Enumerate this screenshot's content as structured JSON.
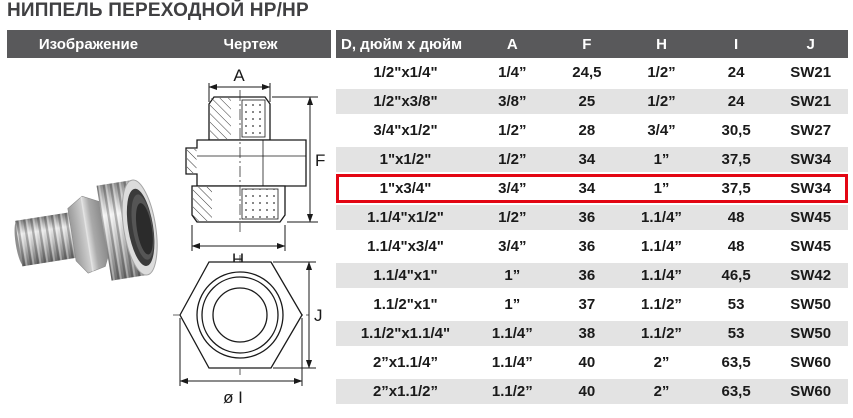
{
  "title": "НИППЕЛЬ ПЕРЕХОДНОЙ НР/НР",
  "colors": {
    "header_bg": "#59595b",
    "row_alt": "#e3e3e3",
    "highlight_border": "#e30613",
    "cell_text": "#1a1a1a",
    "title_text": "#404042"
  },
  "left_panel": {
    "columns": {
      "image": "Изображение",
      "drawing": "Чертеж"
    }
  },
  "drawing": {
    "labels": {
      "a": "A",
      "f": "F",
      "h": "H",
      "j": "J",
      "i": "ø I"
    }
  },
  "table": {
    "headers": [
      "D, дюйм х дюйм",
      "A",
      "F",
      "H",
      "I",
      "J"
    ],
    "rows": [
      {
        "d": "1/2\"x1/4\"",
        "a": "1/4”",
        "f": "24,5",
        "h": "1/2”",
        "i": "24",
        "j": "SW21",
        "highlighted": false
      },
      {
        "d": "1/2\"x3/8\"",
        "a": "3/8”",
        "f": "25",
        "h": "1/2”",
        "i": "24",
        "j": "SW21",
        "highlighted": false
      },
      {
        "d": "3/4\"x1/2\"",
        "a": "1/2”",
        "f": "28",
        "h": "3/4”",
        "i": "30,5",
        "j": "SW27",
        "highlighted": false
      },
      {
        "d": "1\"x1/2\"",
        "a": "1/2”",
        "f": "34",
        "h": "1”",
        "i": "37,5",
        "j": "SW34",
        "highlighted": false
      },
      {
        "d": "1\"x3/4\"",
        "a": "3/4”",
        "f": "34",
        "h": "1”",
        "i": "37,5",
        "j": "SW34",
        "highlighted": true
      },
      {
        "d": "1.1/4\"x1/2\"",
        "a": "1/2”",
        "f": "36",
        "h": "1.1/4”",
        "i": "48",
        "j": "SW45",
        "highlighted": false
      },
      {
        "d": "1.1/4\"x3/4\"",
        "a": "3/4”",
        "f": "36",
        "h": "1.1/4”",
        "i": "48",
        "j": "SW45",
        "highlighted": false
      },
      {
        "d": "1.1/4\"x1\"",
        "a": "1”",
        "f": "36",
        "h": "1.1/4”",
        "i": "46,5",
        "j": "SW42",
        "highlighted": false
      },
      {
        "d": "1.1/2\"x1\"",
        "a": "1”",
        "f": "37",
        "h": "1.1/2”",
        "i": "53",
        "j": "SW50",
        "highlighted": false
      },
      {
        "d": "1.1/2\"x1.1/4\"",
        "a": "1.1/4”",
        "f": "38",
        "h": "1.1/2”",
        "i": "53",
        "j": "SW50",
        "highlighted": false
      },
      {
        "d": "2”x1.1/4”",
        "a": "1.1/4”",
        "f": "40",
        "h": "2”",
        "i": "63,5",
        "j": "SW60",
        "highlighted": false
      },
      {
        "d": "2”x1.1/2”",
        "a": "1.1/2”",
        "f": "40",
        "h": "2”",
        "i": "63,5",
        "j": "SW60",
        "highlighted": false
      }
    ]
  }
}
